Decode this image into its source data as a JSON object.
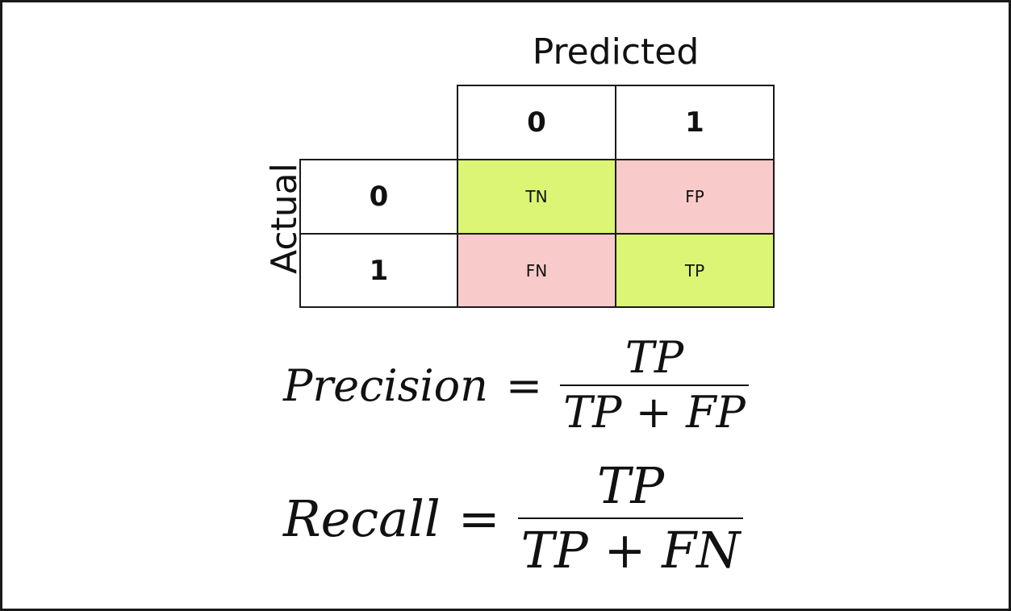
{
  "matrix": {
    "predicted_axis_label": "Predicted",
    "actual_axis_label": "Actual",
    "predicted_classes": [
      "0",
      "1"
    ],
    "actual_classes": [
      "0",
      "1"
    ],
    "cells": {
      "tn": "TN",
      "fp": "FP",
      "fn": "FN",
      "tp": "TP"
    },
    "colors": {
      "correct": "#dcf574",
      "incorrect": "#f8caca",
      "border": "#1a1a1a"
    }
  },
  "formulas": {
    "precision": {
      "lhs": "Precision",
      "eq": "=",
      "num": "TP",
      "den_a": "TP",
      "op": "+",
      "den_b": "FP"
    },
    "recall": {
      "lhs": "Recall",
      "eq": "=",
      "num": "TP",
      "den_a": "TP",
      "op": "+",
      "den_b": "FN"
    }
  }
}
